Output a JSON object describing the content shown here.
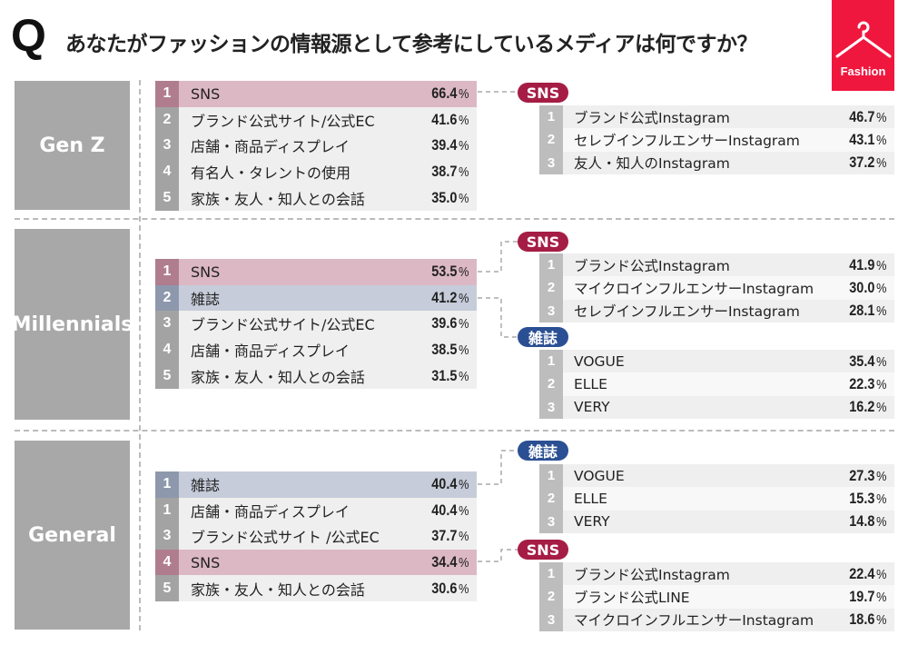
{
  "title": {
    "q": "Q",
    "text": "あなたがファッションの情報源として参考にしているメディアは何ですか？"
  },
  "badge": {
    "label": "Fashion",
    "icon": "hanger-icon",
    "color": "#f0173e"
  },
  "colors": {
    "sns": "#a51d45",
    "magazine": "#2b4f93",
    "sns_row": "#dcb8c4",
    "magazine_row": "#c6ccd9"
  },
  "unit": "%",
  "sections": [
    {
      "label": "Gen Z",
      "ranking": [
        {
          "rank": "1",
          "name": "SNS",
          "pct": "66.4",
          "type": "sns"
        },
        {
          "rank": "2",
          "name": "ブランド公式サイト/公式EC",
          "pct": "41.6"
        },
        {
          "rank": "3",
          "name": "店舗・商品ディスプレイ",
          "pct": "39.4"
        },
        {
          "rank": "4",
          "name": "有名人・タレントの使用",
          "pct": "38.7"
        },
        {
          "rank": "5",
          "name": "家族・友人・知人との会話",
          "pct": "35.0"
        }
      ],
      "details": [
        {
          "tag": "SNS",
          "type": "sns",
          "items": [
            {
              "rank": "1",
              "name": "ブランド公式Instagram",
              "pct": "46.7"
            },
            {
              "rank": "2",
              "name": "セレブインフルエンサーInstagram",
              "pct": "43.1"
            },
            {
              "rank": "3",
              "name": "友人・知人のInstagram",
              "pct": "37.2"
            }
          ]
        }
      ]
    },
    {
      "label": "Millennials",
      "ranking": [
        {
          "rank": "1",
          "name": "SNS",
          "pct": "53.5",
          "type": "sns"
        },
        {
          "rank": "2",
          "name": "雑誌",
          "pct": "41.2",
          "type": "mag"
        },
        {
          "rank": "3",
          "name": "ブランド公式サイト/公式EC",
          "pct": "39.6"
        },
        {
          "rank": "4",
          "name": "店舗・商品ディスプレイ",
          "pct": "38.5"
        },
        {
          "rank": "5",
          "name": "家族・友人・知人との会話",
          "pct": "31.5"
        }
      ],
      "details": [
        {
          "tag": "SNS",
          "type": "sns",
          "items": [
            {
              "rank": "1",
              "name": "ブランド公式Instagram",
              "pct": "41.9"
            },
            {
              "rank": "2",
              "name": "マイクロインフルエンサーInstagram",
              "pct": "30.0"
            },
            {
              "rank": "3",
              "name": "セレブインフルエンサーInstagram",
              "pct": "28.1"
            }
          ]
        },
        {
          "tag": "雑誌",
          "type": "mag",
          "items": [
            {
              "rank": "1",
              "name": "VOGUE",
              "pct": "35.4"
            },
            {
              "rank": "2",
              "name": "ELLE",
              "pct": "22.3"
            },
            {
              "rank": "3",
              "name": "VERY",
              "pct": "16.2"
            }
          ]
        }
      ]
    },
    {
      "label": "General",
      "ranking": [
        {
          "rank": "1",
          "name": "雑誌",
          "pct": "40.4",
          "type": "mag"
        },
        {
          "rank": "1",
          "name": "店舗・商品ディスプレイ",
          "pct": "40.4"
        },
        {
          "rank": "3",
          "name": "ブランド公式サイト /公式EC",
          "pct": "37.7"
        },
        {
          "rank": "4",
          "name": "SNS",
          "pct": "34.4",
          "type": "sns"
        },
        {
          "rank": "5",
          "name": "家族・友人・知人との会話",
          "pct": "30.6"
        }
      ],
      "details": [
        {
          "tag": "雑誌",
          "type": "mag",
          "items": [
            {
              "rank": "1",
              "name": "VOGUE",
              "pct": "27.3"
            },
            {
              "rank": "2",
              "name": "ELLE",
              "pct": "15.3"
            },
            {
              "rank": "3",
              "name": "VERY",
              "pct": "14.8"
            }
          ]
        },
        {
          "tag": "SNS",
          "type": "sns",
          "items": [
            {
              "rank": "1",
              "name": "ブランド公式Instagram",
              "pct": "22.4"
            },
            {
              "rank": "2",
              "name": "ブランド公式LINE",
              "pct": "19.7"
            },
            {
              "rank": "3",
              "name": "マイクロインフルエンサーInstagram",
              "pct": "18.6"
            }
          ]
        }
      ]
    }
  ]
}
